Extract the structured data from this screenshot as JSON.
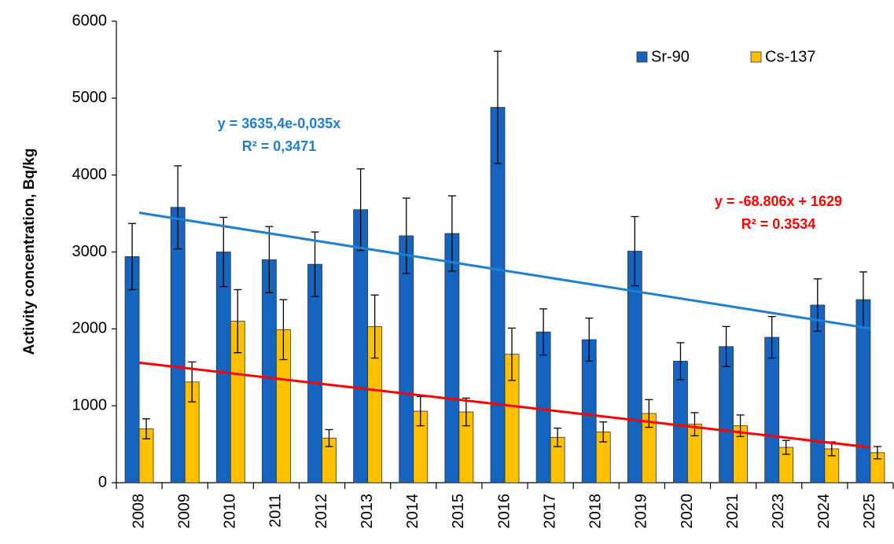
{
  "chart_data": {
    "type": "bar",
    "y_label": "Activity concentration, Bq/kg",
    "categories": [
      "2008",
      "2009",
      "2010",
      "2011",
      "2012",
      "2013",
      "2014",
      "2015",
      "2016",
      "2017",
      "2018",
      "2019",
      "2020",
      "2021",
      "2023",
      "2024",
      "2025"
    ],
    "series": [
      {
        "name": "Sr-90",
        "color": "#1565c0",
        "values": [
          2940,
          3580,
          3000,
          2900,
          2840,
          3550,
          3210,
          3240,
          4880,
          1960,
          1860,
          3010,
          1580,
          1770,
          1890,
          2310,
          2380
        ],
        "errors": [
          430,
          540,
          450,
          430,
          420,
          530,
          490,
          490,
          730,
          300,
          280,
          450,
          240,
          260,
          270,
          340,
          360
        ]
      },
      {
        "name": "Cs-137",
        "color": "#ffc000",
        "values": [
          700,
          1310,
          2100,
          1990,
          580,
          2030,
          930,
          920,
          1670,
          590,
          660,
          900,
          760,
          740,
          460,
          440,
          390
        ],
        "errors": [
          130,
          260,
          410,
          390,
          110,
          410,
          190,
          180,
          340,
          120,
          130,
          180,
          150,
          140,
          90,
          90,
          80
        ]
      }
    ],
    "trendlines": [
      {
        "color": "#1f7fd0",
        "start": 3510,
        "end": 2004,
        "equation": "y = 3635,4e-0,035x",
        "r2": "R² = 0,3471"
      },
      {
        "color": "#ff0000",
        "start": 1560,
        "end": 459,
        "equation": "y = -68.806x + 1629",
        "r2": "R² = 0.3534"
      }
    ],
    "ylim": [
      0,
      6000
    ],
    "yticks": [
      0,
      1000,
      2000,
      3000,
      4000,
      5000,
      6000
    ],
    "grid": false,
    "legend": "top-right"
  }
}
